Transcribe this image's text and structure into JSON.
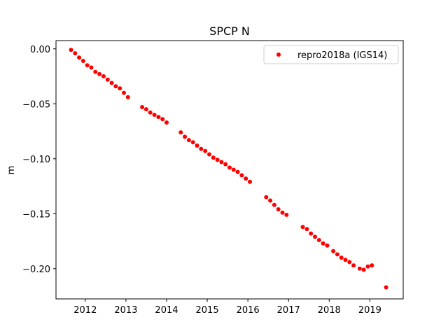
{
  "chart_data": {
    "type": "scatter",
    "title": "SPCP N",
    "xlabel": "",
    "ylabel": "m",
    "xlim": [
      2011.28,
      2019.82
    ],
    "ylim": [
      -0.2275,
      0.0075
    ],
    "xticks": [
      2012,
      2013,
      2014,
      2015,
      2016,
      2017,
      2018,
      2019
    ],
    "yticks": [
      0.0,
      -0.05,
      -0.1,
      -0.15,
      -0.2
    ],
    "ytick_labels": [
      "0.00",
      "−0.05",
      "−0.10",
      "−0.15",
      "−0.20"
    ],
    "grid": false,
    "legend_position": "upper-right",
    "series": [
      {
        "name": "repro2018a (IGS14)",
        "color": "#ff0000",
        "marker": "circle",
        "x": [
          2011.65,
          2011.75,
          2011.85,
          2011.95,
          2012.05,
          2012.15,
          2012.25,
          2012.35,
          2012.45,
          2012.55,
          2012.65,
          2012.75,
          2012.85,
          2012.95,
          2013.05,
          2013.4,
          2013.5,
          2013.6,
          2013.7,
          2013.8,
          2013.9,
          2014.0,
          2014.35,
          2014.45,
          2014.55,
          2014.65,
          2014.75,
          2014.85,
          2014.95,
          2015.05,
          2015.15,
          2015.25,
          2015.35,
          2015.45,
          2015.55,
          2015.65,
          2015.75,
          2015.85,
          2015.95,
          2016.05,
          2016.45,
          2016.55,
          2016.65,
          2016.75,
          2016.85,
          2016.95,
          2017.35,
          2017.45,
          2017.55,
          2017.65,
          2017.75,
          2017.85,
          2017.95,
          2018.1,
          2018.2,
          2018.3,
          2018.4,
          2018.5,
          2018.6,
          2018.75,
          2018.85,
          2018.95,
          2019.05,
          2019.4
        ],
        "y": [
          -0.001,
          -0.004,
          -0.008,
          -0.011,
          -0.015,
          -0.017,
          -0.021,
          -0.023,
          -0.025,
          -0.028,
          -0.031,
          -0.034,
          -0.036,
          -0.04,
          -0.044,
          -0.053,
          -0.055,
          -0.058,
          -0.06,
          -0.062,
          -0.064,
          -0.067,
          -0.076,
          -0.08,
          -0.083,
          -0.085,
          -0.088,
          -0.091,
          -0.093,
          -0.096,
          -0.099,
          -0.101,
          -0.103,
          -0.105,
          -0.108,
          -0.11,
          -0.112,
          -0.115,
          -0.118,
          -0.121,
          -0.135,
          -0.138,
          -0.142,
          -0.146,
          -0.149,
          -0.151,
          -0.162,
          -0.164,
          -0.168,
          -0.171,
          -0.174,
          -0.177,
          -0.179,
          -0.184,
          -0.187,
          -0.19,
          -0.192,
          -0.194,
          -0.197,
          -0.2,
          -0.201,
          -0.198,
          -0.197,
          -0.217
        ]
      }
    ]
  }
}
